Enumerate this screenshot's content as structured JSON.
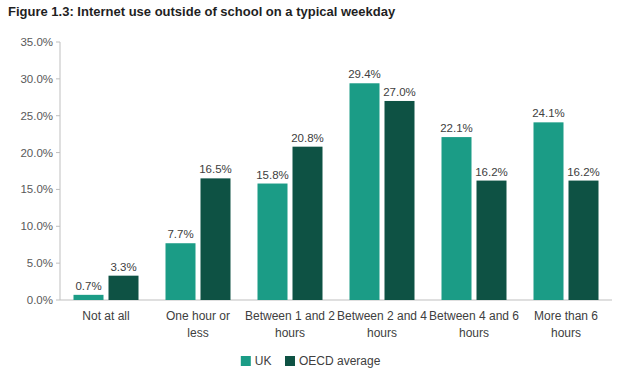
{
  "chart_data": {
    "type": "bar",
    "title": "Figure 1.3: Internet use outside of school on a typical weekday",
    "categories": [
      "Not at all",
      "One hour or less",
      "Between 1 and 2 hours",
      "Between 2 and 4 hours",
      "Between 4 and 6 hours",
      "More than 6 hours"
    ],
    "series": [
      {
        "name": "UK",
        "color": "#1b9c86",
        "values": [
          0.7,
          7.7,
          15.8,
          29.4,
          22.1,
          24.1
        ],
        "value_labels": [
          "0.7%",
          "7.7%",
          "15.8%",
          "29.4%",
          "22.1%",
          "24.1%"
        ]
      },
      {
        "name": "OECD average",
        "color": "#0e5244",
        "values": [
          3.3,
          16.5,
          20.8,
          27.0,
          16.2,
          16.2
        ],
        "value_labels": [
          "3.3%",
          "16.5%",
          "20.8%",
          "27.0%",
          "16.2%",
          "16.2%"
        ]
      }
    ],
    "ylim": [
      0,
      35
    ],
    "yticks": [
      {
        "value": 0,
        "label": "0.0%"
      },
      {
        "value": 5,
        "label": "5.0%"
      },
      {
        "value": 10,
        "label": "10.0%"
      },
      {
        "value": 15,
        "label": "15.0%"
      },
      {
        "value": 20,
        "label": "20.0%"
      },
      {
        "value": 25,
        "label": "25.0%"
      },
      {
        "value": 30,
        "label": "30.0%"
      },
      {
        "value": 35,
        "label": "35.0%"
      }
    ],
    "grid": false,
    "legend": "bottom",
    "data_labels": true
  }
}
